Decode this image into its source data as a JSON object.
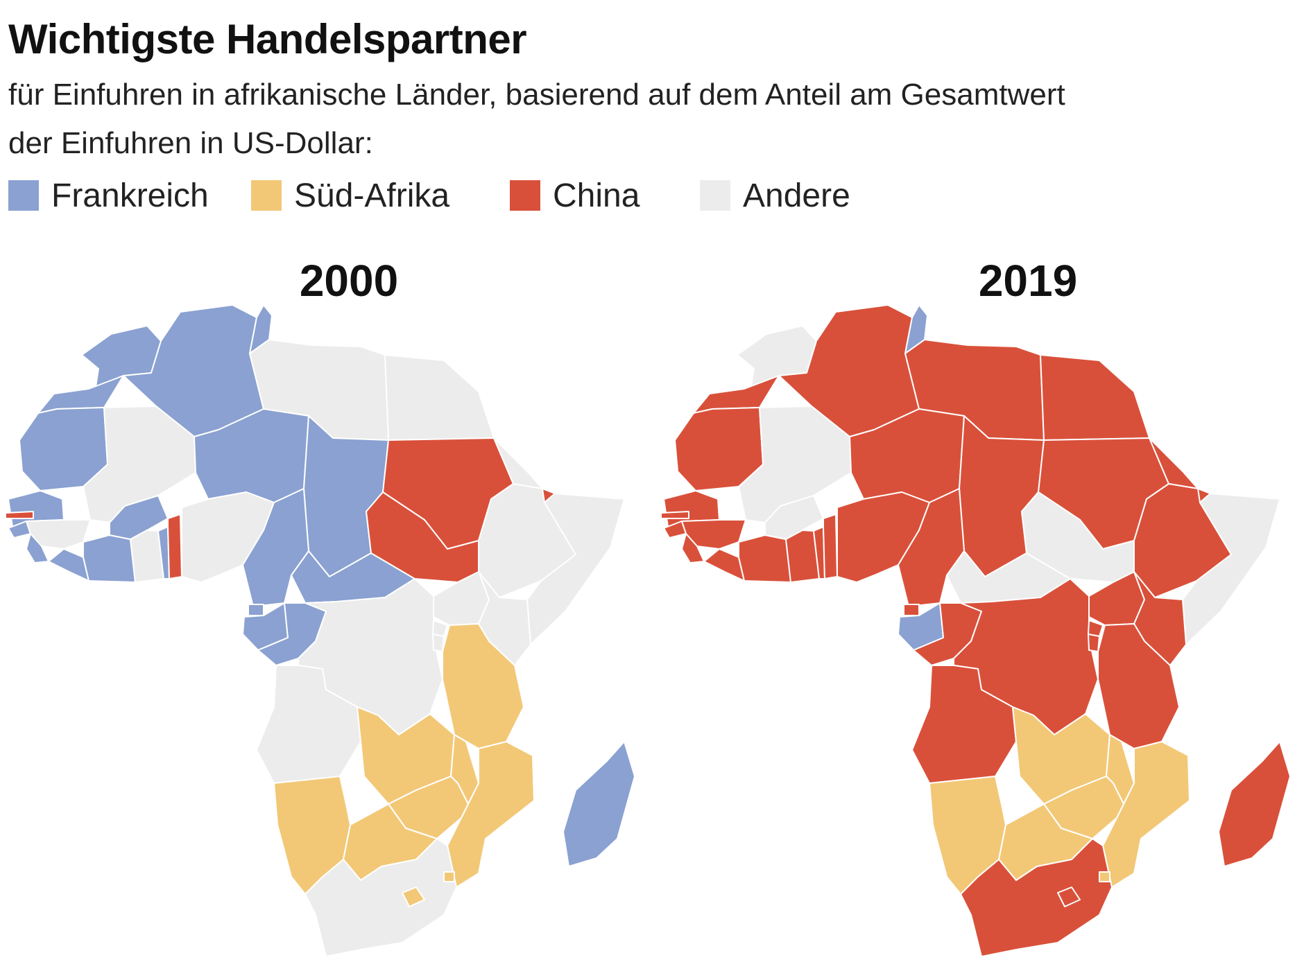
{
  "header": {
    "title": "Wichtigste Handelspartner",
    "subtitle_line1": "für Einfuhren in afrikanische Länder, basierend auf dem Anteil am Gesamtwert",
    "subtitle_line2": "der Einfuhren in US-Dollar:"
  },
  "legend": [
    {
      "key": "fr",
      "label": "Frankreich",
      "color": "#8aa1d1"
    },
    {
      "key": "za",
      "label": "Süd-Afrika",
      "color": "#f2c877"
    },
    {
      "key": "cn",
      "label": "China",
      "color": "#d9503a"
    },
    {
      "key": "ot",
      "label": "Andere",
      "color": "#ececec"
    }
  ],
  "maps": [
    {
      "year": "2000",
      "regions": {
        "morocco": "fr",
        "algeria": "fr",
        "tunisia": "fr",
        "libya": "ot",
        "egypt": "ot",
        "western_sahara": "fr",
        "mauritania": "fr",
        "mali": "ot",
        "niger": "fr",
        "chad": "fr",
        "sudan": "cn",
        "eritrea": "ot",
        "djibouti": "cn",
        "ethiopia": "ot",
        "somalia": "ot",
        "senegal": "fr",
        "gambia": "cn",
        "guinea_bissau": "fr",
        "guinea": "ot",
        "sierra_leone": "fr",
        "liberia": "fr",
        "ivory_coast": "fr",
        "burkina_faso": "fr",
        "ghana": "ot",
        "togo": "fr",
        "benin": "cn",
        "nigeria": "ot",
        "cameroon": "fr",
        "car": "fr",
        "south_sudan": "cn",
        "eq_guinea": "fr",
        "gabon": "fr",
        "congo": "fr",
        "drc": "ot",
        "uganda": "ot",
        "kenya": "ot",
        "rwanda": "ot",
        "burundi": "ot",
        "tanzania": "za",
        "angola": "ot",
        "zambia": "za",
        "malawi": "za",
        "mozambique": "za",
        "zimbabwe": "za",
        "namibia": "za",
        "botswana": "za",
        "south_africa": "ot",
        "lesotho": "za",
        "eswatini": "za",
        "madagascar": "fr"
      }
    },
    {
      "year": "2019",
      "regions": {
        "morocco": "ot",
        "algeria": "cn",
        "tunisia": "fr",
        "libya": "cn",
        "egypt": "cn",
        "western_sahara": "cn",
        "mauritania": "cn",
        "mali": "ot",
        "niger": "cn",
        "chad": "cn",
        "sudan": "cn",
        "eritrea": "cn",
        "djibouti": "cn",
        "ethiopia": "cn",
        "somalia": "ot",
        "senegal": "cn",
        "gambia": "cn",
        "guinea_bissau": "cn",
        "guinea": "cn",
        "sierra_leone": "cn",
        "liberia": "cn",
        "ivory_coast": "cn",
        "burkina_faso": "ot",
        "ghana": "cn",
        "togo": "cn",
        "benin": "cn",
        "nigeria": "cn",
        "cameroon": "cn",
        "car": "ot",
        "south_sudan": "ot",
        "eq_guinea": "cn",
        "gabon": "fr",
        "congo": "cn",
        "drc": "cn",
        "uganda": "cn",
        "kenya": "cn",
        "rwanda": "cn",
        "burundi": "cn",
        "tanzania": "cn",
        "angola": "cn",
        "zambia": "za",
        "malawi": "za",
        "mozambique": "za",
        "zimbabwe": "za",
        "namibia": "za",
        "botswana": "za",
        "south_africa": "cn",
        "lesotho": "cn",
        "eswatini": "za",
        "madagascar": "cn"
      }
    }
  ]
}
